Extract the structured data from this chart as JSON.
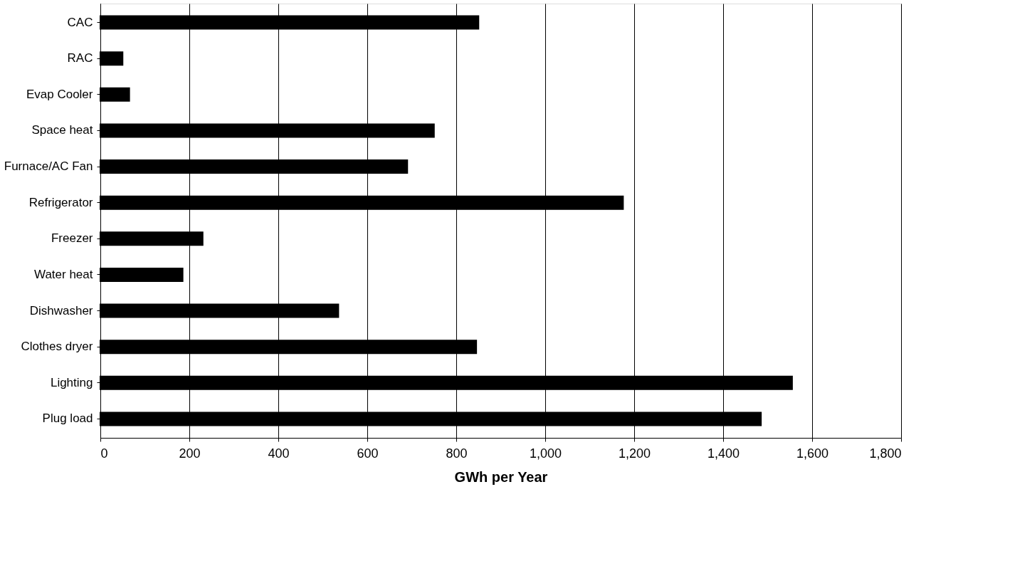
{
  "chart_data": {
    "type": "bar",
    "orientation": "horizontal",
    "xlabel": "GWh per Year",
    "categories": [
      "CAC",
      "RAC",
      "Evap Cooler",
      "Space heat",
      "Furnace/AC Fan",
      "Refrigerator",
      "Freezer",
      "Water heat",
      "Dishwasher",
      "Clothes dryer",
      "Lighting",
      "Plug load"
    ],
    "values": [
      850,
      50,
      65,
      750,
      690,
      1175,
      230,
      185,
      535,
      845,
      1555,
      1485
    ],
    "color": "#000000",
    "xlim": [
      0,
      1800
    ],
    "xticks": [
      0,
      200,
      400,
      600,
      800,
      {
        "value": 1000,
        "label": "1,000"
      },
      {
        "value": 1200,
        "label": "1,200"
      },
      {
        "value": 1400,
        "label": "1,400"
      },
      {
        "value": 1600,
        "label": "1,600"
      },
      {
        "value": 1800,
        "label": "1,800"
      }
    ],
    "grid": "x"
  }
}
